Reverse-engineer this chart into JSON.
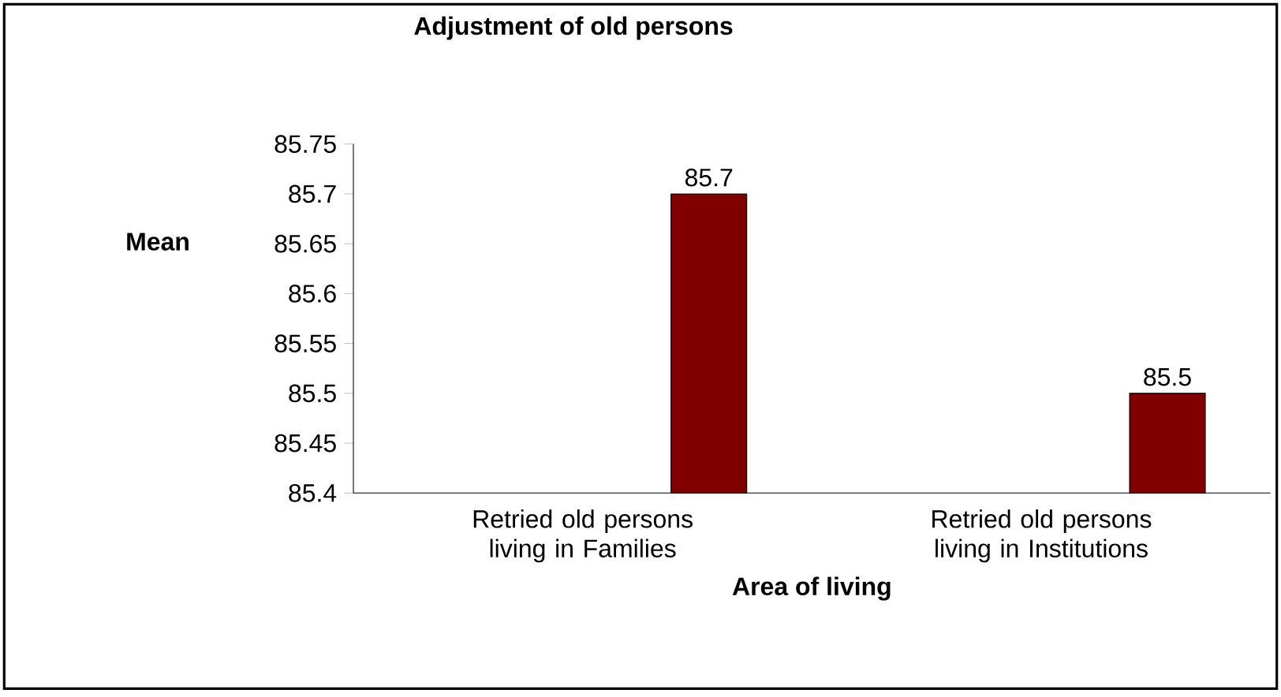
{
  "chart_data": {
    "type": "bar",
    "title": "Adjustment of old persons",
    "xlabel": "Area of living",
    "ylabel": "Mean",
    "categories": [
      "Retried old persons living in Families",
      "Retried old persons living in Institutions"
    ],
    "values": [
      85.7,
      85.5
    ],
    "color": "#800000",
    "data_labels": true,
    "ylim": [
      85.4,
      85.75
    ],
    "yticks": [
      85.4,
      85.45,
      85.5,
      85.55,
      85.6,
      85.65,
      85.7,
      85.75
    ],
    "grid": false
  }
}
